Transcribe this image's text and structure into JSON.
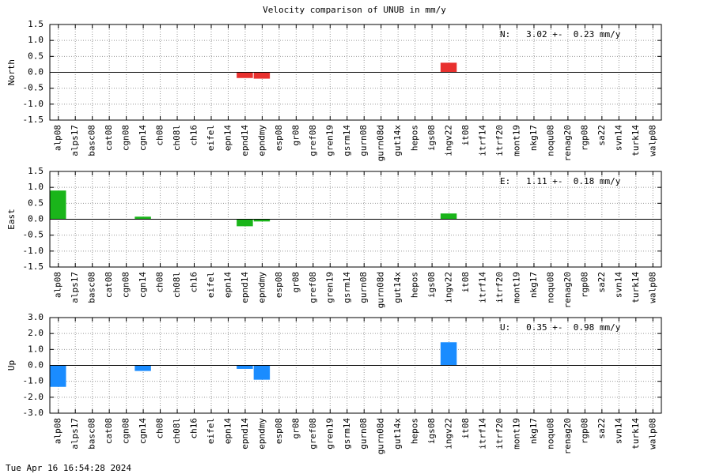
{
  "title": "Velocity comparison of UNUB in mm/y",
  "timestamp": "Tue Apr 16 16:54:28 2024",
  "chart_data": [
    {
      "type": "bar",
      "ylabel": "North",
      "annotation": "N:   3.02 +-  0.23 mm/y",
      "color": "#e8302e",
      "categories": [
        "alp08",
        "alps17",
        "basc08",
        "cat08",
        "cgn08",
        "cgn14",
        "ch08",
        "ch08l",
        "ch16",
        "eifel",
        "epn14",
        "epnd14",
        "epndmy",
        "esp08",
        "gr08",
        "gref08",
        "gren19",
        "gsrm14",
        "gurn08",
        "gurn08d",
        "gut14x",
        "hepos",
        "igs08",
        "ingv22",
        "it08",
        "itrf14",
        "itrf20",
        "mont19",
        "nkg17",
        "noqu08",
        "renag20",
        "rgp08",
        "sa22",
        "svn14",
        "turk14",
        "walp08"
      ],
      "values": [
        null,
        null,
        null,
        null,
        null,
        null,
        null,
        null,
        null,
        null,
        null,
        -0.18,
        -0.2,
        null,
        null,
        null,
        null,
        null,
        null,
        null,
        null,
        null,
        null,
        0.3,
        null,
        null,
        null,
        null,
        null,
        null,
        null,
        null,
        null,
        null,
        null,
        null
      ],
      "ylim": [
        -1.5,
        1.5
      ],
      "yticks": [
        1.5,
        {
          "value": 1,
          "label": "1.0"
        },
        0.5,
        {
          "value": 0,
          "label": "0.0"
        },
        -0.5,
        {
          "value": -1,
          "label": "-1.0"
        },
        -1.5
      ],
      "grid": true
    },
    {
      "type": "bar",
      "ylabel": "East",
      "annotation": "E:   1.11 +-  0.18 mm/y",
      "color": "#1ab51a",
      "categories": [
        "alp08",
        "alps17",
        "basc08",
        "cat08",
        "cgn08",
        "cgn14",
        "ch08",
        "ch08l",
        "ch16",
        "eifel",
        "epn14",
        "epnd14",
        "epndmy",
        "esp08",
        "gr08",
        "gref08",
        "gren19",
        "gsrm14",
        "gurn08",
        "gurn08d",
        "gut14x",
        "hepos",
        "igs08",
        "ingv22",
        "it08",
        "itrf14",
        "itrf20",
        "mont19",
        "nkg17",
        "noqu08",
        "renag20",
        "rgp08",
        "sa22",
        "svn14",
        "turk14",
        "walp08"
      ],
      "values": [
        0.9,
        null,
        null,
        null,
        null,
        0.08,
        null,
        null,
        null,
        null,
        null,
        -0.22,
        -0.07,
        null,
        null,
        null,
        null,
        null,
        null,
        null,
        null,
        null,
        null,
        0.18,
        null,
        null,
        null,
        null,
        null,
        null,
        null,
        null,
        null,
        null,
        null,
        null
      ],
      "ylim": [
        -1.5,
        1.5
      ],
      "yticks": [
        1.5,
        {
          "value": 1,
          "label": "1.0"
        },
        0.5,
        {
          "value": 0,
          "label": "0.0"
        },
        -0.5,
        {
          "value": -1,
          "label": "-1.0"
        },
        -1.5
      ],
      "grid": true
    },
    {
      "type": "bar",
      "ylabel": "Up",
      "annotation": "U:   0.35 +-  0.98 mm/y",
      "color": "#1a8cff",
      "categories": [
        "alp08",
        "alps17",
        "basc08",
        "cat08",
        "cgn08",
        "cgn14",
        "ch08",
        "ch08l",
        "ch16",
        "eifel",
        "epn14",
        "epnd14",
        "epndmy",
        "esp08",
        "gr08",
        "gref08",
        "gren19",
        "gsrm14",
        "gurn08",
        "gurn08d",
        "gut14x",
        "hepos",
        "igs08",
        "ingv22",
        "it08",
        "itrf14",
        "itrf20",
        "mont19",
        "nkg17",
        "noqu08",
        "renag20",
        "rgp08",
        "sa22",
        "svn14",
        "turk14",
        "walp08"
      ],
      "values": [
        -1.35,
        null,
        null,
        null,
        null,
        -0.35,
        null,
        null,
        null,
        null,
        null,
        -0.22,
        -0.9,
        null,
        null,
        null,
        null,
        null,
        null,
        null,
        null,
        null,
        null,
        1.45,
        null,
        null,
        null,
        null,
        null,
        null,
        null,
        null,
        null,
        null,
        null,
        null
      ],
      "ylim": [
        -3,
        3
      ],
      "yticks": [
        {
          "value": 3,
          "label": "3.0"
        },
        {
          "value": 2,
          "label": "2.0"
        },
        {
          "value": 1,
          "label": "1.0"
        },
        {
          "value": 0,
          "label": "0.0"
        },
        {
          "value": -1,
          "label": "-1.0"
        },
        {
          "value": -2,
          "label": "-2.0"
        },
        {
          "value": -3,
          "label": "-3.0"
        }
      ],
      "grid": true
    }
  ]
}
